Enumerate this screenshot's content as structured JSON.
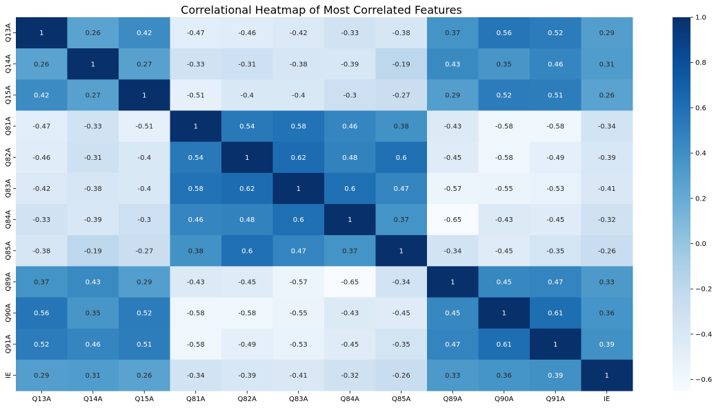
{
  "chart_data": {
    "type": "heatmap",
    "title": "Correlational Heatmap of Most Correlated Features",
    "x_labels": [
      "Q13A",
      "Q14A",
      "Q15A",
      "Q81A",
      "Q82A",
      "Q83A",
      "Q84A",
      "Q85A",
      "Q89A",
      "Q90A",
      "Q91A",
      "IE"
    ],
    "y_labels": [
      "Q13A",
      "Q14A",
      "Q15A",
      "Q81A",
      "Q82A",
      "Q83A",
      "Q84A",
      "Q85A",
      "Q89A",
      "Q90A",
      "Q91A",
      "IE"
    ],
    "values": [
      [
        1,
        0.26,
        0.42,
        -0.47,
        -0.46,
        -0.42,
        -0.33,
        -0.38,
        0.37,
        0.56,
        0.52,
        0.29
      ],
      [
        0.26,
        1,
        0.27,
        -0.33,
        -0.31,
        -0.38,
        -0.39,
        -0.19,
        0.43,
        0.35,
        0.46,
        0.31
      ],
      [
        0.42,
        0.27,
        1,
        -0.51,
        -0.4,
        -0.4,
        -0.3,
        -0.27,
        0.29,
        0.52,
        0.51,
        0.26
      ],
      [
        -0.47,
        -0.33,
        -0.51,
        1,
        0.54,
        0.58,
        0.46,
        0.38,
        -0.43,
        -0.58,
        -0.58,
        -0.34
      ],
      [
        -0.46,
        -0.31,
        -0.4,
        0.54,
        1,
        0.62,
        0.48,
        0.6,
        -0.45,
        -0.58,
        -0.49,
        -0.39
      ],
      [
        -0.42,
        -0.38,
        -0.4,
        0.58,
        0.62,
        1,
        0.6,
        0.47,
        -0.57,
        -0.55,
        -0.53,
        -0.41
      ],
      [
        -0.33,
        -0.39,
        -0.3,
        0.46,
        0.48,
        0.6,
        1,
        0.37,
        -0.65,
        -0.43,
        -0.45,
        -0.32
      ],
      [
        -0.38,
        -0.19,
        -0.27,
        0.38,
        0.6,
        0.47,
        0.37,
        1,
        -0.34,
        -0.45,
        -0.35,
        -0.26
      ],
      [
        0.37,
        0.43,
        0.29,
        -0.43,
        -0.45,
        -0.57,
        -0.65,
        -0.34,
        1,
        0.45,
        0.47,
        0.33
      ],
      [
        0.56,
        0.35,
        0.52,
        -0.58,
        -0.58,
        -0.55,
        -0.43,
        -0.45,
        0.45,
        1,
        0.61,
        0.36
      ],
      [
        0.52,
        0.46,
        0.51,
        -0.58,
        -0.49,
        -0.53,
        -0.45,
        -0.35,
        0.47,
        0.61,
        1,
        0.39
      ],
      [
        0.29,
        0.31,
        0.26,
        -0.34,
        -0.39,
        -0.41,
        -0.32,
        -0.26,
        0.33,
        0.36,
        0.39,
        1
      ]
    ],
    "colormap": "Blues",
    "vmin": -0.65,
    "vmax": 1,
    "colorbar_ticks": [
      1.0,
      0.8,
      0.6,
      0.4,
      0.2,
      0.0,
      -0.2,
      -0.4,
      -0.6
    ],
    "colorbar_tick_labels": [
      "1.0",
      "0.8",
      "0.6",
      "0.4",
      "0.2",
      "0.0",
      "−0.2",
      "−0.4",
      "−0.6"
    ],
    "annotations": true,
    "grid": false
  }
}
